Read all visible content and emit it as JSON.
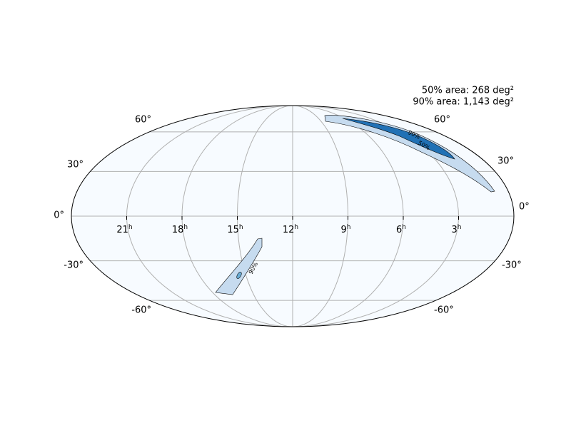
{
  "annotations": [
    "50% area: 268 deg²",
    "90% area: 1,143 deg²"
  ],
  "ra_labels": [
    {
      "hours": "21",
      "unit": "h"
    },
    {
      "hours": "18",
      "unit": "h"
    },
    {
      "hours": "15",
      "unit": "h"
    },
    {
      "hours": "12",
      "unit": "h"
    },
    {
      "hours": "9",
      "unit": "h"
    },
    {
      "hours": "6",
      "unit": "h"
    },
    {
      "hours": "3",
      "unit": "h"
    }
  ],
  "dec_labels": [
    "60°",
    "30°",
    "0°",
    "-30°",
    "-60°"
  ],
  "contour_labels": [
    "90%",
    "50%"
  ]
}
